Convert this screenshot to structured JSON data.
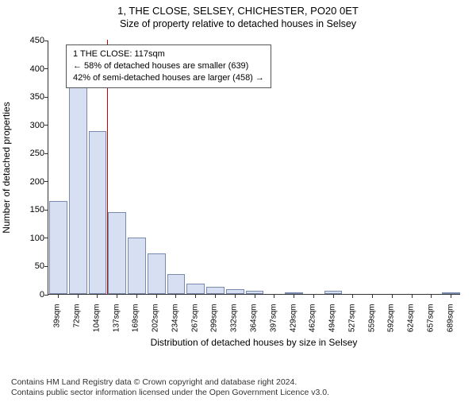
{
  "title": "1, THE CLOSE, SELSEY, CHICHESTER, PO20 0ET",
  "subtitle": "Size of property relative to detached houses in Selsey",
  "chart": {
    "type": "bar",
    "categories": [
      "39sqm",
      "72sqm",
      "104sqm",
      "137sqm",
      "169sqm",
      "202sqm",
      "234sqm",
      "267sqm",
      "299sqm",
      "332sqm",
      "364sqm",
      "397sqm",
      "429sqm",
      "462sqm",
      "494sqm",
      "527sqm",
      "559sqm",
      "592sqm",
      "624sqm",
      "657sqm",
      "689sqm"
    ],
    "values": [
      165,
      375,
      288,
      145,
      100,
      72,
      35,
      18,
      12,
      8,
      6,
      0,
      3,
      0,
      5,
      0,
      0,
      0,
      0,
      0,
      2
    ],
    "ylim": [
      0,
      450
    ],
    "ytick_step": 50,
    "ylabel": "Number of detached properties",
    "xlabel": "Distribution of detached houses by size in Selsey",
    "bar_fill": "#d6e0f2",
    "bar_border": "#7a8aae",
    "background_color": "#ffffff",
    "ref_line": {
      "index_after_bar": 2,
      "color": "#cc0000"
    },
    "annotation": {
      "lines": [
        "1 THE CLOSE: 117sqm",
        "← 58% of detached houses are smaller (639)",
        "42% of semi-detached houses are larger (458) →"
      ],
      "border_color": "#555555",
      "bg_color": "#ffffff",
      "font_size": 11
    }
  },
  "footnote": {
    "line1": "Contains HM Land Registry data © Crown copyright and database right 2024.",
    "line2": "Contains public sector information licensed under the Open Government Licence v3.0."
  }
}
